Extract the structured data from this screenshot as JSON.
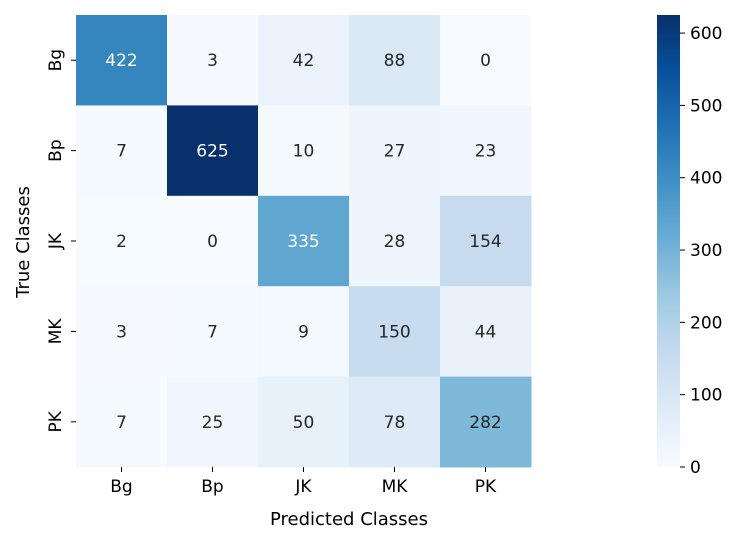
{
  "chart_data": {
    "type": "heatmap",
    "title": "",
    "xlabel": "Predicted Classes",
    "ylabel": "True Classes",
    "x_categories": [
      "Bg",
      "Bp",
      "JK",
      "MK",
      "PK"
    ],
    "y_categories": [
      "Bg",
      "Bp",
      "JK",
      "MK",
      "PK"
    ],
    "values": [
      [
        422,
        3,
        42,
        88,
        0
      ],
      [
        7,
        625,
        10,
        27,
        23
      ],
      [
        2,
        0,
        335,
        28,
        154
      ],
      [
        3,
        7,
        9,
        150,
        44
      ],
      [
        7,
        25,
        50,
        78,
        282
      ]
    ],
    "colorbar": {
      "min": 0,
      "max": 625,
      "ticks": [
        0,
        100,
        200,
        300,
        400,
        500,
        600
      ],
      "colormap": "Blues"
    },
    "colors": {
      "low": "#f7fbff",
      "high": "#08306b"
    }
  }
}
